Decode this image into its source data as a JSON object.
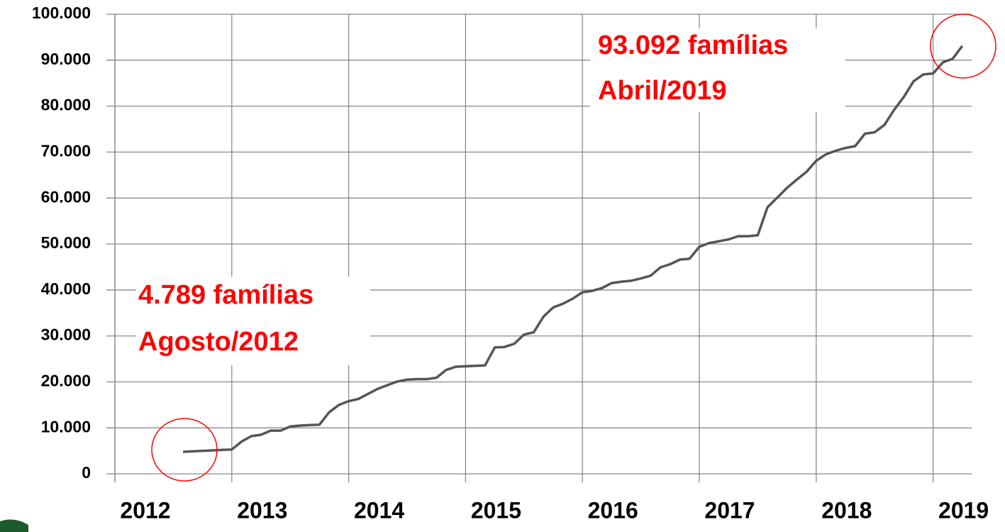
{
  "chart_data": {
    "type": "line",
    "color": "#555555",
    "x": [
      2012.583,
      2012.667,
      2012.75,
      2012.833,
      2012.917,
      2013,
      2013.083,
      2013.167,
      2013.25,
      2013.333,
      2013.417,
      2013.5,
      2013.583,
      2013.667,
      2013.75,
      2013.833,
      2013.917,
      2014,
      2014.083,
      2014.167,
      2014.25,
      2014.333,
      2014.417,
      2014.5,
      2014.583,
      2014.667,
      2014.75,
      2014.833,
      2014.917,
      2015,
      2015.083,
      2015.167,
      2015.25,
      2015.333,
      2015.417,
      2015.5,
      2015.583,
      2015.667,
      2015.75,
      2015.833,
      2015.917,
      2016,
      2016.083,
      2016.167,
      2016.25,
      2016.333,
      2016.417,
      2016.5,
      2016.583,
      2016.667,
      2016.75,
      2016.833,
      2016.917,
      2017,
      2017.083,
      2017.167,
      2017.25,
      2017.333,
      2017.417,
      2017.5,
      2017.583,
      2017.667,
      2017.75,
      2017.833,
      2017.917,
      2018,
      2018.083,
      2018.167,
      2018.25,
      2018.333,
      2018.417,
      2018.5,
      2018.583,
      2018.667,
      2018.75,
      2018.833,
      2018.917,
      2019,
      2019.083,
      2019.167,
      2019.25
    ],
    "values": [
      4789,
      4900,
      5000,
      5100,
      5200,
      5300,
      7000,
      8200,
      8500,
      9400,
      9400,
      10300,
      10500,
      10600,
      10700,
      13400,
      15000,
      15800,
      16300,
      17400,
      18500,
      19300,
      20100,
      20500,
      20600,
      20600,
      20900,
      22600,
      23300,
      23400,
      23500,
      23600,
      27500,
      27600,
      28300,
      30300,
      30800,
      34200,
      36200,
      37000,
      38100,
      39500,
      39800,
      40400,
      41500,
      41800,
      42000,
      42500,
      43100,
      44900,
      45600,
      46600,
      46800,
      49400,
      50200,
      50600,
      51000,
      51700,
      51700,
      51900,
      58000,
      60100,
      62200,
      64000,
      65700,
      68100,
      69500,
      70300,
      70900,
      71300,
      74000,
      74300,
      75900,
      79200,
      82000,
      85400,
      86900,
      87100,
      89500,
      90300,
      93092
    ],
    "xlim": [
      2012,
      2019.33
    ],
    "xticks": [
      2012,
      2013,
      2014,
      2015,
      2016,
      2017,
      2018,
      2019
    ],
    "ylim": [
      0,
      100000
    ],
    "yticks": [
      0,
      {
        "value": 10000,
        "label": "10.000"
      },
      {
        "value": 20000,
        "label": "20.000"
      },
      {
        "value": 30000,
        "label": "30.000"
      },
      {
        "value": 40000,
        "label": "40.000"
      },
      {
        "value": 50000,
        "label": "50.000"
      },
      {
        "value": 60000,
        "label": "60.000"
      },
      {
        "value": 70000,
        "label": "70.000"
      },
      {
        "value": 80000,
        "label": "80.000"
      },
      {
        "value": 90000,
        "label": "90.000"
      },
      {
        "value": 100000,
        "label": "100.000"
      }
    ],
    "grid": true,
    "annotations": [
      {
        "lines": [
          "4.789 famílias",
          "Agosto/2012"
        ]
      },
      {
        "lines": [
          "93.092 famílias",
          "Abril/2019"
        ]
      }
    ]
  }
}
